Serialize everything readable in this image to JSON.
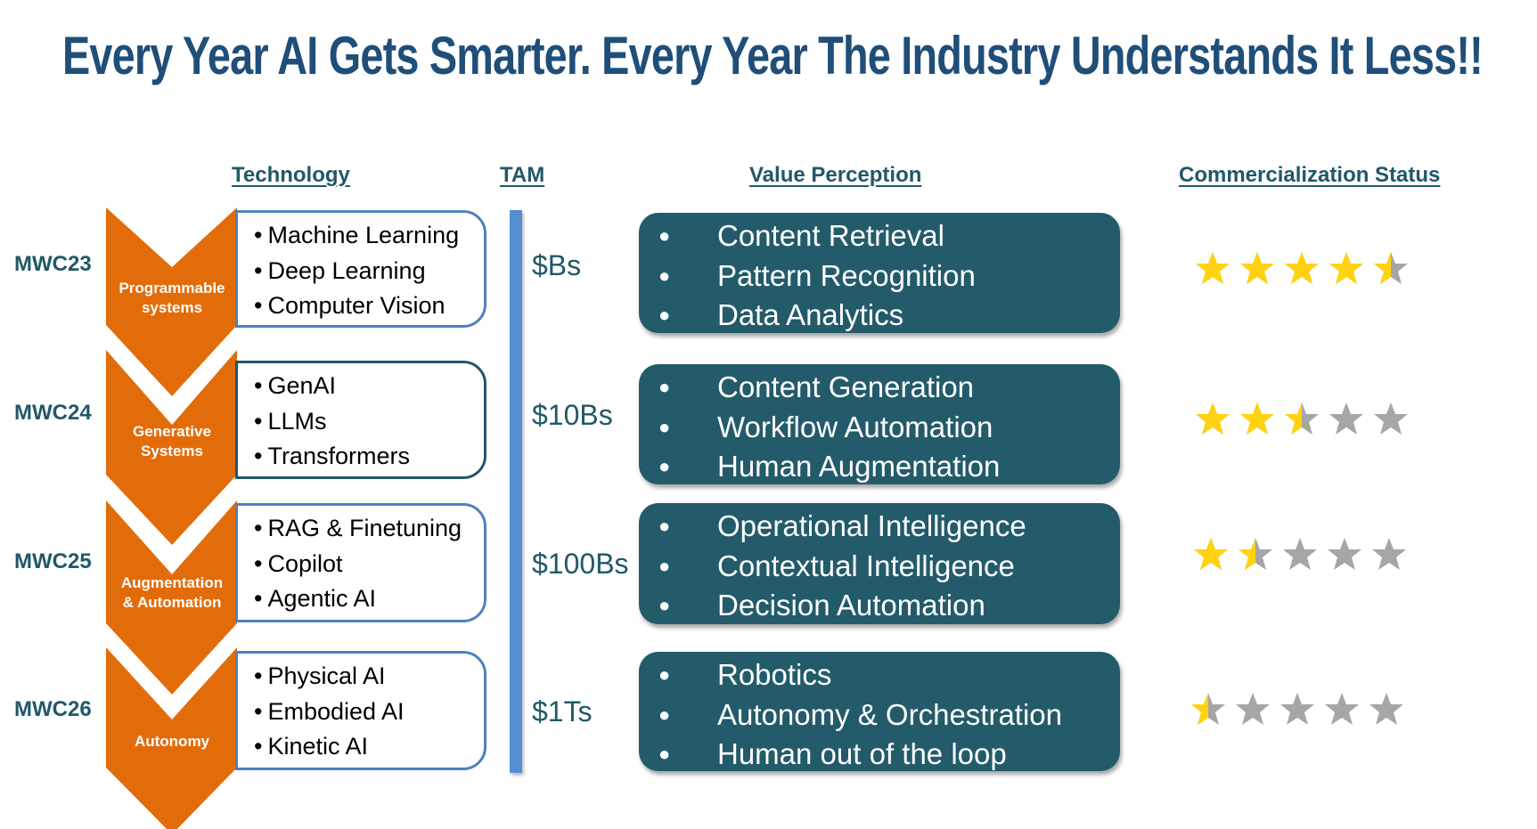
{
  "title": "Every Year AI Gets Smarter. Every Year The Industry Understands It Less!!",
  "headers": {
    "technology": "Technology",
    "tam": "TAM",
    "value_perception": "Value Perception",
    "commercialization_status": "Commercialization  Status"
  },
  "colors": {
    "title": "#1F4E79",
    "chevron": "#E36C0A",
    "tech_box_border": "#4F81BD",
    "tech_box_border_alt": "#215868",
    "tam_bar": "#558ED5",
    "value_box": "#235B6B",
    "star_filled": "#FFD310",
    "star_empty": "#A6A6A6"
  },
  "rows": [
    {
      "year": "MWC23",
      "stage": [
        "Programmable",
        "systems"
      ],
      "technologies": [
        "Machine Learning",
        "Deep Learning",
        "Computer Vision"
      ],
      "tam": "$Bs",
      "value_perception": [
        "Content Retrieval",
        "Pattern Recognition",
        "Data Analytics"
      ],
      "rating": 4.5,
      "rating_max": 5
    },
    {
      "year": "MWC24",
      "stage": [
        "Generative",
        "Systems"
      ],
      "technologies": [
        "GenAI",
        "LLMs",
        "Transformers"
      ],
      "tam": "$10Bs",
      "value_perception": [
        "Content Generation",
        "Workflow Automation",
        "Human Augmentation"
      ],
      "rating": 2.5,
      "rating_max": 5
    },
    {
      "year": "MWC25",
      "stage": [
        "Augmentation",
        "& Automation"
      ],
      "technologies": [
        "RAG & Finetuning",
        "Copilot",
        "Agentic AI"
      ],
      "tam": "$100Bs",
      "value_perception": [
        "Operational Intelligence",
        "Contextual Intelligence",
        "Decision Automation"
      ],
      "rating": 1.5,
      "rating_max": 5
    },
    {
      "year": "MWC26",
      "stage": [
        "Autonomy"
      ],
      "technologies": [
        "Physical AI",
        "Embodied AI",
        "Kinetic AI"
      ],
      "tam": "$1Ts",
      "value_perception": [
        "Robotics",
        "Autonomy & Orchestration",
        "Human out of the loop"
      ],
      "rating": 0.5,
      "rating_max": 5
    }
  ]
}
